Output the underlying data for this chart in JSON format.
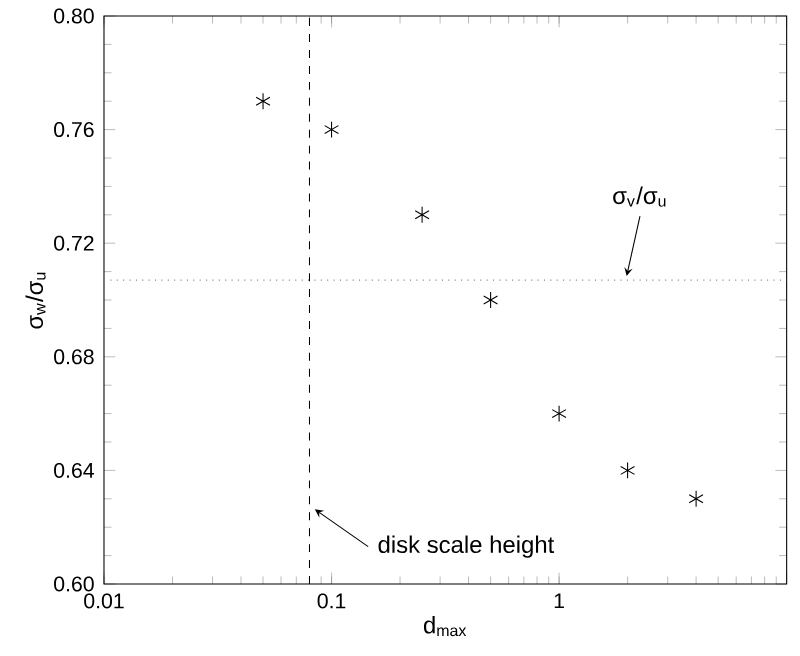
{
  "chart_data": {
    "type": "scatter",
    "xlabel": "d$_{max}$",
    "ylabel": "σ$_{w}$/σ$_{u}$",
    "x": [
      0.05,
      0.1,
      0.25,
      0.5,
      1,
      2,
      4
    ],
    "values": [
      0.77,
      0.76,
      0.73,
      0.7,
      0.66,
      0.64,
      0.63
    ],
    "color": "#000000",
    "marker": "cross",
    "log": "x",
    "xlim": [
      0.01,
      10
    ],
    "xticks": [
      0.01,
      0.1,
      1,
      {
        "value": 10,
        "label": null
      }
    ],
    "ylim": [
      0.6,
      0.8
    ],
    "yticks": [
      {
        "value": 0.6,
        "label": "0.60"
      },
      0.64,
      0.68,
      0.72,
      0.76,
      {
        "value": 0.8,
        "label": "0.80"
      }
    ],
    "ref_lines": [
      {
        "axis": "y",
        "value": 0.707,
        "label": "σ$_{v}$/σ$_{u}$",
        "line_style": "dotted",
        "color": "#808080"
      },
      {
        "axis": "x",
        "value": 0.08,
        "label": "disk scale height",
        "line_style": "dashed",
        "color": "#000000"
      }
    ]
  }
}
